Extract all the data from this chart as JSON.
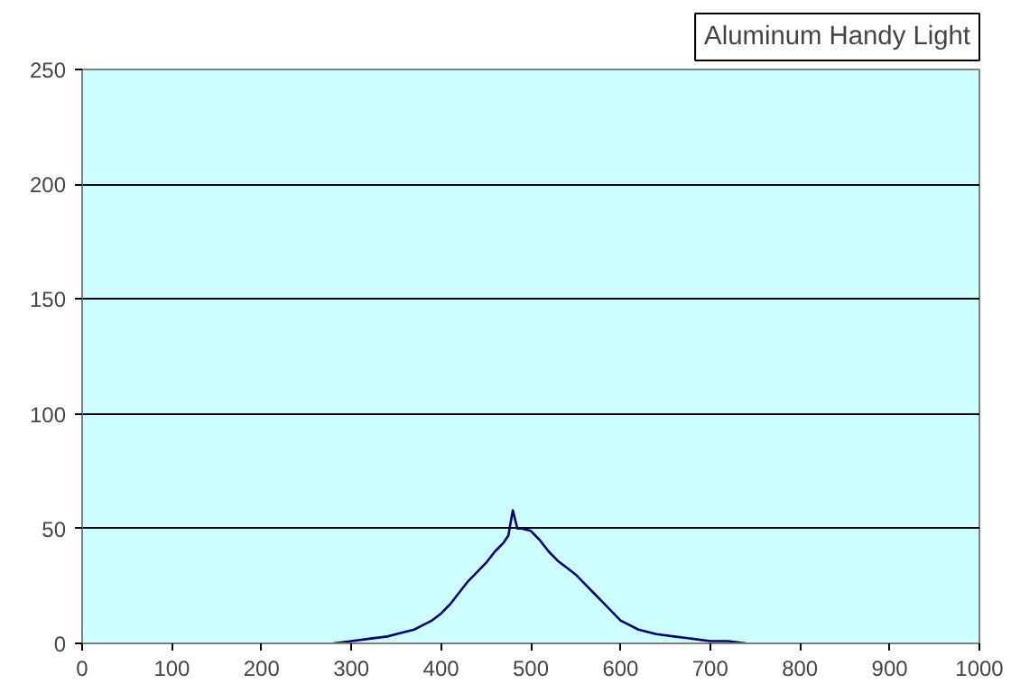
{
  "chart_data": {
    "type": "line",
    "title": "Aluminum Handy Light",
    "x": [
      280,
      300,
      320,
      340,
      350,
      370,
      380,
      390,
      400,
      410,
      420,
      430,
      440,
      450,
      460,
      470,
      475,
      480,
      485,
      490,
      500,
      510,
      520,
      530,
      540,
      550,
      560,
      570,
      580,
      590,
      600,
      620,
      640,
      660,
      680,
      700,
      720,
      740
    ],
    "series": [
      {
        "color": "#000080",
        "values": [
          0,
          1,
          2,
          3,
          4,
          6,
          8,
          10,
          13,
          17,
          22,
          27,
          31,
          35,
          40,
          44,
          47,
          58,
          50,
          50,
          49,
          45,
          40,
          36,
          33,
          30,
          26,
          22,
          18,
          14,
          10,
          6,
          4,
          3,
          2,
          1,
          1,
          0
        ]
      }
    ],
    "xlim": [
      0,
      1000
    ],
    "ylim": [
      0,
      250
    ],
    "xticks": [
      0,
      100,
      200,
      300,
      400,
      500,
      600,
      700,
      800,
      900,
      1000
    ],
    "yticks": [
      0,
      50,
      100,
      150,
      200,
      250
    ],
    "grid": "y"
  }
}
